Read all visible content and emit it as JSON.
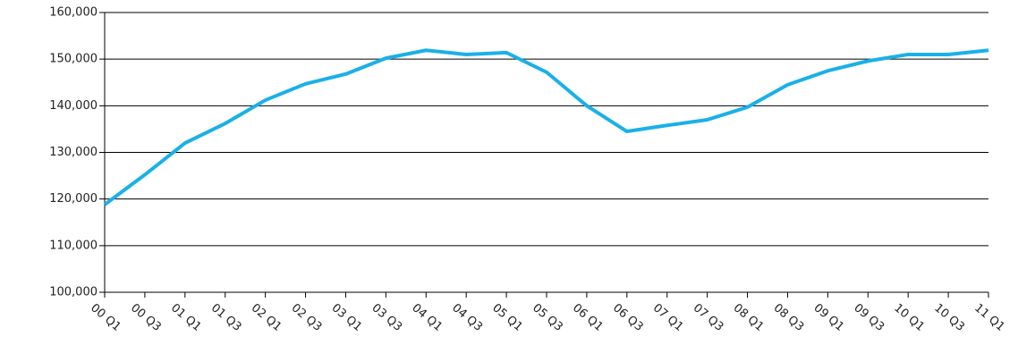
{
  "chart_data": {
    "type": "line",
    "categories": [
      "00 Q1",
      "00 Q3",
      "01 Q1",
      "01 Q3",
      "02 Q1",
      "02 Q3",
      "03 Q1",
      "03 Q3",
      "04 Q1",
      "04 Q3",
      "05 Q1",
      "05 Q3",
      "06 Q1",
      "06 Q3",
      "07 Q1",
      "07 Q3",
      "08 Q1",
      "08 Q3",
      "09 Q1",
      "09 Q3",
      "10 Q1",
      "10 Q3",
      "11 Q1"
    ],
    "values": [
      118800,
      125200,
      132000,
      136200,
      141200,
      144700,
      146800,
      150200,
      151900,
      151000,
      151400,
      147200,
      140000,
      134500,
      135800,
      137000,
      139700,
      144500,
      147500,
      149600,
      151000,
      151000,
      151900
    ],
    "color": "#1ab0e8",
    "ylim": [
      100000,
      160000
    ],
    "yticks": [
      {
        "value": 100000,
        "label": "100,000"
      },
      {
        "value": 110000,
        "label": "110,000"
      },
      {
        "value": 120000,
        "label": "120,000"
      },
      {
        "value": 130000,
        "label": "130,000"
      },
      {
        "value": 140000,
        "label": "140,000"
      },
      {
        "value": 150000,
        "label": "150,000"
      },
      {
        "value": 160000,
        "label": "160,000"
      }
    ],
    "grid": true
  }
}
